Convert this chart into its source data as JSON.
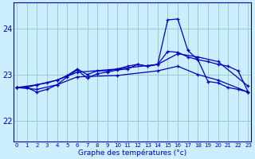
{
  "xlabel": "Graphe des températures (°c)",
  "background_color": "#cceeff",
  "grid_color": "#99cccc",
  "line_color": "#0000bb",
  "x_ticks": [
    0,
    1,
    2,
    3,
    4,
    5,
    6,
    7,
    8,
    9,
    10,
    11,
    12,
    13,
    14,
    15,
    16,
    17,
    18,
    19,
    20,
    21,
    22,
    23
  ],
  "yticks": [
    22,
    23,
    24
  ],
  "ylim": [
    21.55,
    24.55
  ],
  "xlim": [
    -0.3,
    23.3
  ],
  "series": [
    {
      "name": "s1_dense_wavy",
      "x": [
        0,
        1,
        2,
        3,
        4,
        5,
        6,
        7,
        8,
        9,
        10,
        11,
        12,
        13,
        14,
        15,
        16,
        17,
        18,
        19,
        20,
        21,
        22,
        23
      ],
      "y": [
        22.72,
        22.72,
        22.78,
        22.82,
        22.88,
        22.98,
        23.12,
        23.0,
        23.08,
        23.08,
        23.12,
        23.18,
        23.22,
        23.18,
        23.22,
        23.5,
        23.48,
        23.38,
        23.32,
        23.28,
        23.22,
        23.18,
        23.08,
        22.62
      ]
    },
    {
      "name": "s2_big_peak",
      "x": [
        0,
        1,
        2,
        3,
        4,
        5,
        6,
        7,
        8,
        9,
        10,
        11,
        12,
        13,
        14,
        15,
        16,
        17,
        18,
        19,
        20,
        21,
        22,
        23
      ],
      "y": [
        22.72,
        22.72,
        22.62,
        22.68,
        22.78,
        22.95,
        23.1,
        22.92,
        23.02,
        23.05,
        23.1,
        23.12,
        23.22,
        23.18,
        23.22,
        24.18,
        24.2,
        23.52,
        23.32,
        22.85,
        22.82,
        22.72,
        22.68,
        22.62
      ]
    },
    {
      "name": "s3_upper_trend",
      "x": [
        0,
        2,
        4,
        6,
        10,
        14,
        16,
        18,
        20,
        23
      ],
      "y": [
        22.72,
        22.78,
        22.88,
        23.05,
        23.12,
        23.22,
        23.45,
        23.38,
        23.28,
        22.75
      ]
    },
    {
      "name": "s4_lower_trend",
      "x": [
        0,
        2,
        4,
        6,
        10,
        14,
        16,
        18,
        20,
        23
      ],
      "y": [
        22.72,
        22.68,
        22.78,
        22.95,
        22.98,
        23.08,
        23.18,
        23.0,
        22.88,
        22.62
      ]
    }
  ]
}
